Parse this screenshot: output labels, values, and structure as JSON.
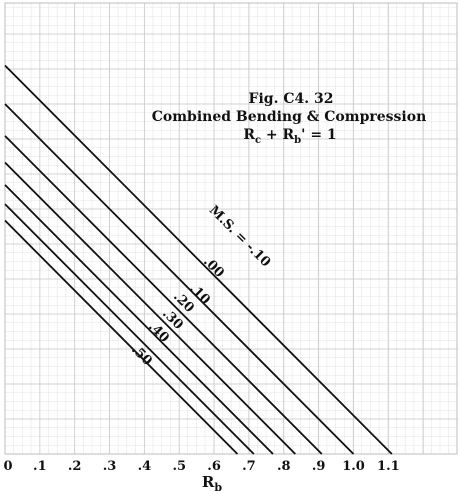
{
  "chart_data": {
    "type": "line",
    "title": "Fig.  C4. 32",
    "subtitle": "Combined Bending & Compression",
    "equation": {
      "main": "R",
      "c_sub": "c",
      "plus": " + R",
      "b_sub": "b",
      "rest": "' = 1"
    },
    "xlabel": {
      "main": "R",
      "sub": "b"
    },
    "ylabel": "",
    "xlim": [
      0,
      1.15
    ],
    "ylim": [
      0,
      1.15
    ],
    "grid": true,
    "x_tick_labels": [
      "0",
      ".1",
      ".2",
      ".3",
      ".4",
      ".5",
      ".6",
      ".7",
      ".8",
      ".9",
      "1.0",
      "1.1"
    ],
    "x_tick_values": [
      0,
      0.1,
      0.2,
      0.3,
      0.4,
      0.5,
      0.6,
      0.7,
      0.8,
      0.9,
      1.0,
      1.1
    ],
    "series": [
      {
        "name": "M.S. = -.10",
        "values": [
          [
            0,
            1.11
          ],
          [
            1.11,
            0
          ]
        ]
      },
      {
        "name": ".00",
        "values": [
          [
            0,
            1.0
          ],
          [
            1.0,
            0
          ]
        ]
      },
      {
        "name": ".10",
        "values": [
          [
            0,
            0.909
          ],
          [
            0.909,
            0
          ]
        ]
      },
      {
        "name": ".20",
        "values": [
          [
            0,
            0.833
          ],
          [
            0.833,
            0
          ]
        ]
      },
      {
        "name": ".30",
        "values": [
          [
            0,
            0.769
          ],
          [
            0.769,
            0
          ]
        ]
      },
      {
        "name": ".40",
        "values": [
          [
            0,
            0.714
          ],
          [
            0.714,
            0
          ]
        ]
      },
      {
        "name": ".50",
        "values": [
          [
            0,
            0.667
          ],
          [
            0.667,
            0
          ]
        ]
      }
    ]
  }
}
